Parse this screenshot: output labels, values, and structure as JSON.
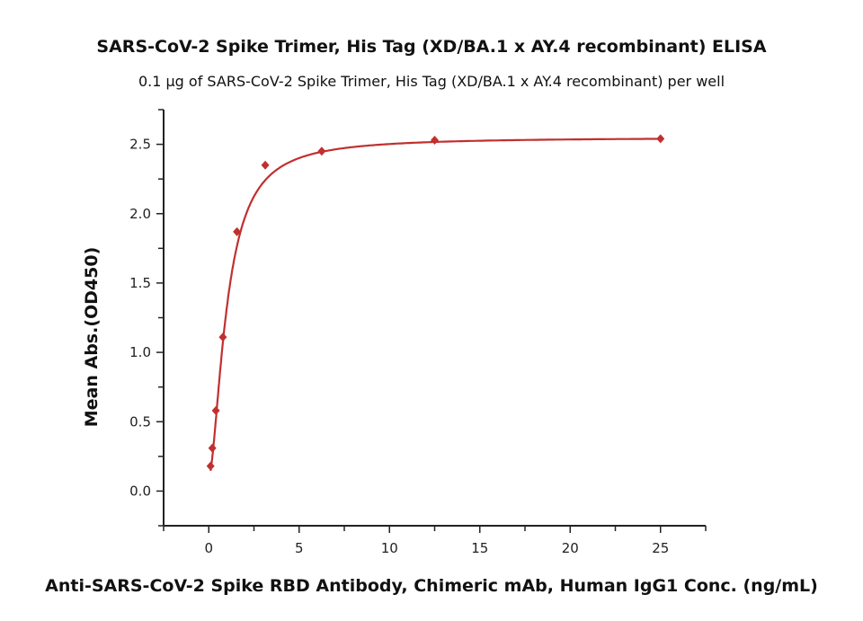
{
  "chart_data": {
    "type": "scatter",
    "title": "SARS-CoV-2 Spike Trimer, His Tag (XD/BA.1 x AY.4 recombinant) ELISA",
    "subtitle": "0.1 μg of SARS-CoV-2 Spike Trimer, His Tag (XD/BA.1 x AY.4 recombinant) per well",
    "xlabel": "Anti-SARS-CoV-2 Spike RBD Antibody, Chimeric mAb, Human IgG1 Conc. (ng/mL)",
    "ylabel": "Mean Abs.(OD450)",
    "xlim": [
      -2.5,
      27.5
    ],
    "ylim": [
      -0.25,
      2.75
    ],
    "xticks": [
      "0",
      "5",
      "10",
      "15",
      "20",
      "25"
    ],
    "yticks": [
      "0.0",
      "0.5",
      "1.0",
      "1.5",
      "2.0",
      "2.5"
    ],
    "grid": false,
    "color": "#c0302f",
    "series": [
      {
        "name": "Mean Abs.",
        "x": [
          0.098,
          0.195,
          0.39,
          0.78,
          1.56,
          3.125,
          6.25,
          12.5,
          25
        ],
        "y": [
          0.18,
          0.31,
          0.58,
          1.11,
          1.87,
          2.35,
          2.45,
          2.53,
          2.54
        ]
      }
    ],
    "fit": {
      "model": "4PL",
      "bottom": 0.1,
      "top": 2.55,
      "ec50": 1.0,
      "hill": 1.7
    }
  }
}
